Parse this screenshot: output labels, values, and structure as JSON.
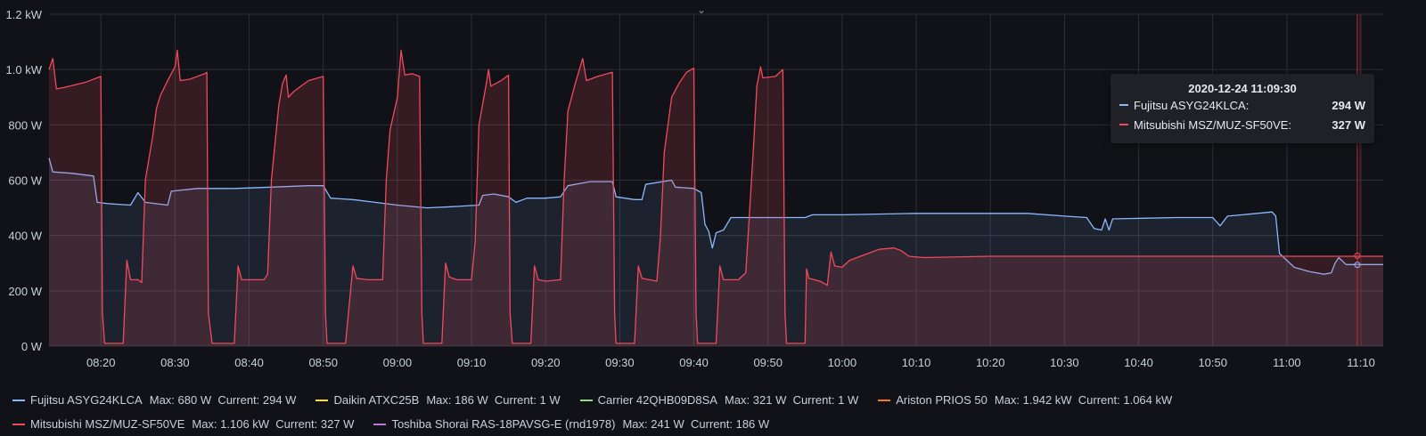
{
  "chart_data": {
    "type": "line",
    "xlim": [
      "08:13",
      "11:13"
    ],
    "ylim": [
      0,
      1200
    ],
    "y_ticks": [
      "0 W",
      "200 W",
      "400 W",
      "600 W",
      "800 W",
      "1.0 kW",
      "1.2 kW"
    ],
    "y_tick_values": [
      0,
      200,
      400,
      600,
      800,
      1000,
      1200
    ],
    "x_ticks": [
      "08:20",
      "08:30",
      "08:40",
      "08:50",
      "09:00",
      "09:10",
      "09:20",
      "09:30",
      "09:40",
      "09:50",
      "10:00",
      "10:10",
      "10:20",
      "10:30",
      "10:40",
      "10:50",
      "11:00",
      "11:10"
    ],
    "grid": true,
    "fill": true,
    "series": [
      {
        "name": "Fujitsu ASYG24KLCA",
        "color": "#8ab8ff",
        "points": [
          [
            "08:13",
            680
          ],
          [
            "08:13.5",
            630
          ],
          [
            "08:16",
            625
          ],
          [
            "08:19",
            615
          ],
          [
            "08:19.5",
            520
          ],
          [
            "08:21",
            515
          ],
          [
            "08:24",
            510
          ],
          [
            "08:25",
            555
          ],
          [
            "08:26",
            520
          ],
          [
            "08:29",
            510
          ],
          [
            "08:29.5",
            560
          ],
          [
            "08:33",
            570
          ],
          [
            "08:38",
            570
          ],
          [
            "08:43",
            575
          ],
          [
            "08:48",
            580
          ],
          [
            "08:50",
            580
          ],
          [
            "08:51",
            535
          ],
          [
            "08:54",
            530
          ],
          [
            "08:57",
            520
          ],
          [
            "09:00",
            510
          ],
          [
            "09:04",
            500
          ],
          [
            "09:08",
            505
          ],
          [
            "09:11",
            510
          ],
          [
            "09:11.5",
            545
          ],
          [
            "09:13",
            550
          ],
          [
            "09:15",
            540
          ],
          [
            "09:16",
            520
          ],
          [
            "09:17.5",
            535
          ],
          [
            "09:20",
            535
          ],
          [
            "09:22",
            540
          ],
          [
            "09:23",
            580
          ],
          [
            "09:26",
            595
          ],
          [
            "09:29",
            595
          ],
          [
            "09:29.5",
            540
          ],
          [
            "09:32",
            530
          ],
          [
            "09:33",
            530
          ],
          [
            "09:33.5",
            585
          ],
          [
            "09:37",
            600
          ],
          [
            "09:37.5",
            575
          ],
          [
            "09:40",
            570
          ],
          [
            "09:41",
            555
          ],
          [
            "09:41.5",
            440
          ],
          [
            "09:42",
            415
          ],
          [
            "09:42.5",
            355
          ],
          [
            "09:43",
            410
          ],
          [
            "09:44",
            420
          ],
          [
            "09:45",
            465
          ],
          [
            "09:50",
            465
          ],
          [
            "09:55",
            465
          ],
          [
            "09:56",
            475
          ],
          [
            "10:00",
            475
          ],
          [
            "10:10",
            480
          ],
          [
            "10:20",
            480
          ],
          [
            "10:25",
            480
          ],
          [
            "10:30",
            470
          ],
          [
            "10:33",
            465
          ],
          [
            "10:34",
            425
          ],
          [
            "10:35",
            420
          ],
          [
            "10:35.5",
            460
          ],
          [
            "10:36",
            420
          ],
          [
            "10:36.5",
            460
          ],
          [
            "10:45",
            465
          ],
          [
            "10:50",
            465
          ],
          [
            "10:51",
            435
          ],
          [
            "10:52",
            470
          ],
          [
            "10:56",
            480
          ],
          [
            "10:58",
            485
          ],
          [
            "10:58.5",
            470
          ],
          [
            "10:59",
            335
          ],
          [
            "11:01",
            285
          ],
          [
            "11:03",
            270
          ],
          [
            "11:05",
            260
          ],
          [
            "11:06",
            265
          ],
          [
            "11:06.5",
            300
          ],
          [
            "11:07",
            320
          ],
          [
            "11:08",
            295
          ],
          [
            "11:13",
            295
          ]
        ]
      },
      {
        "name": "Mitsubishi MSZ/MUZ-SF50VE",
        "color": "#f2495c",
        "points": [
          [
            "08:13",
            1000
          ],
          [
            "08:13.5",
            1040
          ],
          [
            "08:14",
            930
          ],
          [
            "08:15",
            935
          ],
          [
            "08:18",
            955
          ],
          [
            "08:20",
            975
          ],
          [
            "08:20.2",
            120
          ],
          [
            "08:20.5",
            10
          ],
          [
            "08:23",
            10
          ],
          [
            "08:23.5",
            310
          ],
          [
            "08:24",
            240
          ],
          [
            "08:25",
            240
          ],
          [
            "08:25.5",
            230
          ],
          [
            "08:26",
            600
          ],
          [
            "08:27",
            760
          ],
          [
            "08:27.5",
            860
          ],
          [
            "08:28",
            905
          ],
          [
            "08:29",
            960
          ],
          [
            "08:30",
            1010
          ],
          [
            "08:30.3",
            1070
          ],
          [
            "08:30.7",
            960
          ],
          [
            "08:32",
            965
          ],
          [
            "08:34",
            985
          ],
          [
            "08:34.3",
            990
          ],
          [
            "08:34.5",
            120
          ],
          [
            "08:35",
            10
          ],
          [
            "08:38",
            10
          ],
          [
            "08:38.5",
            290
          ],
          [
            "08:39",
            240
          ],
          [
            "08:40",
            240
          ],
          [
            "08:42",
            240
          ],
          [
            "08:42.5",
            260
          ],
          [
            "08:43",
            600
          ],
          [
            "08:44",
            870
          ],
          [
            "08:44.5",
            950
          ],
          [
            "08:45",
            980
          ],
          [
            "08:45.3",
            900
          ],
          [
            "08:46",
            920
          ],
          [
            "08:48",
            960
          ],
          [
            "08:50",
            975
          ],
          [
            "08:50.3",
            120
          ],
          [
            "08:50.5",
            10
          ],
          [
            "08:53",
            10
          ],
          [
            "08:54",
            290
          ],
          [
            "08:54.5",
            245
          ],
          [
            "08:56",
            240
          ],
          [
            "08:58",
            240
          ],
          [
            "08:58.5",
            600
          ],
          [
            "08:59",
            780
          ],
          [
            "09:00",
            900
          ],
          [
            "09:00.5",
            1070
          ],
          [
            "09:01",
            980
          ],
          [
            "09:02",
            985
          ],
          [
            "09:03",
            975
          ],
          [
            "09:03.3",
            120
          ],
          [
            "09:03.5",
            10
          ],
          [
            "09:06",
            10
          ],
          [
            "09:06.5",
            300
          ],
          [
            "09:07",
            250
          ],
          [
            "09:08",
            240
          ],
          [
            "09:10",
            240
          ],
          [
            "09:10.5",
            380
          ],
          [
            "09:11",
            800
          ],
          [
            "09:12",
            950
          ],
          [
            "09:12.3",
            1000
          ],
          [
            "09:12.6",
            940
          ],
          [
            "09:14",
            960
          ],
          [
            "09:15",
            980
          ],
          [
            "09:15.2",
            120
          ],
          [
            "09:15.5",
            10
          ],
          [
            "09:18",
            10
          ],
          [
            "09:18.5",
            290
          ],
          [
            "09:19",
            240
          ],
          [
            "09:20",
            235
          ],
          [
            "09:22",
            240
          ],
          [
            "09:22.5",
            600
          ],
          [
            "09:23",
            850
          ],
          [
            "09:24",
            950
          ],
          [
            "09:25",
            1040
          ],
          [
            "09:25.5",
            960
          ],
          [
            "09:27",
            975
          ],
          [
            "09:29",
            990
          ],
          [
            "09:29.3",
            120
          ],
          [
            "09:29.5",
            10
          ],
          [
            "09:32",
            10
          ],
          [
            "09:32.5",
            290
          ],
          [
            "09:33",
            245
          ],
          [
            "09:34",
            240
          ],
          [
            "09:35",
            235
          ],
          [
            "09:35.5",
            400
          ],
          [
            "09:36",
            700
          ],
          [
            "09:37",
            900
          ],
          [
            "09:38",
            950
          ],
          [
            "09:39",
            990
          ],
          [
            "09:40",
            1005
          ],
          [
            "09:40.3",
            120
          ],
          [
            "09:40.5",
            10
          ],
          [
            "09:43",
            10
          ],
          [
            "09:43.5",
            290
          ],
          [
            "09:44",
            240
          ],
          [
            "09:46",
            240
          ],
          [
            "09:47",
            265
          ],
          [
            "09:48",
            700
          ],
          [
            "09:48.5",
            940
          ],
          [
            "09:49",
            1010
          ],
          [
            "09:49.3",
            970
          ],
          [
            "09:51",
            975
          ],
          [
            "09:52",
            1000
          ],
          [
            "09:52.3",
            120
          ],
          [
            "09:52.5",
            10
          ],
          [
            "09:55",
            10
          ],
          [
            "09:55.2",
            280
          ],
          [
            "09:55.5",
            245
          ],
          [
            "09:57",
            235
          ],
          [
            "09:58",
            220
          ],
          [
            "09:58.5",
            340
          ],
          [
            "09:59",
            290
          ],
          [
            "10:00",
            285
          ],
          [
            "10:01",
            310
          ],
          [
            "10:03",
            330
          ],
          [
            "10:05",
            350
          ],
          [
            "10:07",
            355
          ],
          [
            "10:08",
            345
          ],
          [
            "10:09",
            325
          ],
          [
            "10:11",
            320
          ],
          [
            "10:20",
            325
          ],
          [
            "10:30",
            325
          ],
          [
            "10:40",
            325
          ],
          [
            "10:50",
            325
          ],
          [
            "11:00",
            325
          ],
          [
            "11:13",
            325
          ]
        ]
      }
    ]
  },
  "tooltip": {
    "time": "2020-12-24 11:09:30",
    "rows": [
      {
        "name": "Fujitsu ASYG24KLCA:",
        "value": "294 W",
        "color": "#8ab8ff"
      },
      {
        "name": "Mitsubishi MSZ/MUZ-SF50VE:",
        "value": "327 W",
        "color": "#f2495c"
      }
    ]
  },
  "legend": {
    "row1": [
      {
        "name": "Fujitsu ASYG24KLCA",
        "stats": "Max: 680 W  Current: 294 W",
        "color": "#8ab8ff"
      },
      {
        "name": "Daikin ATXC25B",
        "stats": "Max: 186 W  Current: 1 W",
        "color": "#fade2a"
      },
      {
        "name": "Carrier 42QHB09D8SA",
        "stats": "Max: 321 W  Current: 1 W",
        "color": "#96d98d"
      },
      {
        "name": "Ariston PRIOS 50",
        "stats": "Max: 1.942 kW  Current: 1.064 kW",
        "color": "#ff780a"
      }
    ],
    "row2": [
      {
        "name": "Mitsubishi MSZ/MUZ-SF50VE",
        "stats": "Max: 1.106 kW  Current: 327 W",
        "color": "#f2495c"
      },
      {
        "name": "Toshiba Shorai RAS-18PAVSG-E (rnd1978)",
        "stats": "Max: 241 W  Current: 186 W",
        "color": "#b877d9"
      }
    ]
  }
}
